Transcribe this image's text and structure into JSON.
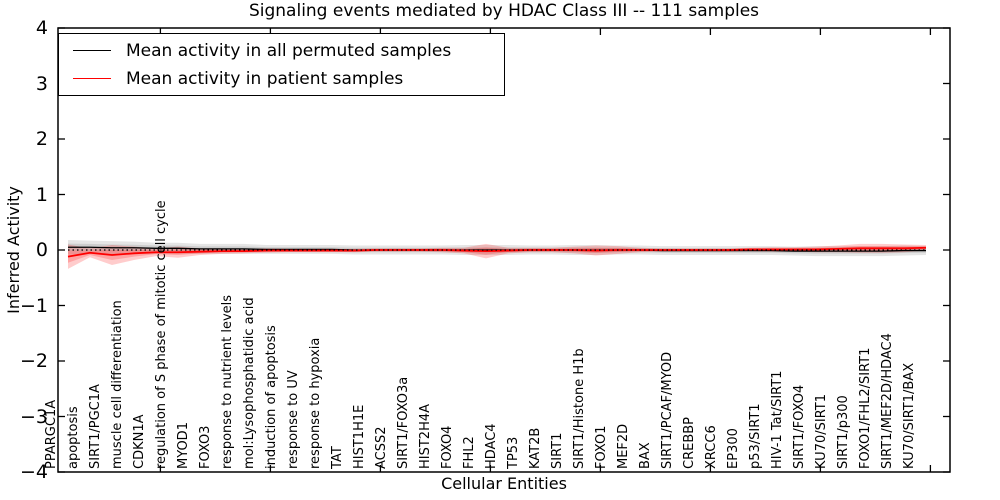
{
  "figure": {
    "title": "Signaling events mediated by HDAC Class III -- 111 samples",
    "xlabel": "Cellular Entities",
    "ylabel": "Inferred Activity"
  },
  "legend": {
    "position": "upper left",
    "items": [
      {
        "label": "Mean activity in all permuted samples",
        "color": "#000000"
      },
      {
        "label": "Mean activity in patient samples",
        "color": "#ff0000"
      }
    ]
  },
  "colors": {
    "axis": "#000000",
    "patient_line": "#ff0000",
    "permuted_line": "#000000",
    "patient_band": "rgba(255,0,0,0.20)",
    "permuted_band": "rgba(0,0,0,0.10)",
    "background": "#ffffff"
  },
  "chart_data": {
    "type": "line",
    "title": "Signaling events mediated by HDAC Class III -- 111 samples",
    "xlabel": "Cellular Entities",
    "ylabel": "Inferred Activity",
    "ylim": [
      -4,
      4
    ],
    "yticks": [
      4,
      3,
      2,
      1,
      0,
      -1,
      -2,
      -3,
      -4
    ],
    "grid": false,
    "legend_position": "upper left",
    "zero_reference_line": "dotted",
    "categories": [
      "PPARGC1A",
      "apoptosis",
      "SIRT1/PGC1A",
      "muscle cell differentiation",
      "CDKN1A",
      "regulation of S phase of mitotic cell cycle",
      "MYOD1",
      "FOXO3",
      "response to nutrient levels",
      "mol:Lysophosphatidic acid",
      "induction of apoptosis",
      "response to UV",
      "response to hypoxia",
      "TAT",
      "HIST1H1E",
      "ACSS2",
      "SIRT1/FOXO3a",
      "HIST2H4A",
      "FOXO4",
      "FHL2",
      "HDAC4",
      "TP53",
      "KAT2B",
      "SIRT1",
      "SIRT1/Histone H1b",
      "FOXO1",
      "MEF2D",
      "BAX",
      "SIRT1/PCAF/MYOD",
      "CREBBP",
      "XRCC6",
      "EP300",
      "p53/SIRT1",
      "HIV-1 Tat/SIRT1",
      "SIRT1/FOXO4",
      "KU70/SIRT1",
      "SIRT1/p300",
      "FOXO1/FHL2/SIRT1",
      "SIRT1/MEF2D/HDAC4",
      "KU70/SIRT1/BAX"
    ],
    "series": [
      {
        "name": "Mean activity in all permuted samples",
        "color": "#000000",
        "line_style": "solid",
        "values": [
          0.05,
          0.05,
          0.04,
          0.04,
          0.03,
          0.03,
          0.02,
          0.02,
          0.02,
          0.01,
          0.01,
          0.01,
          0.01,
          0.0,
          0.0,
          0.0,
          0.0,
          0.0,
          0.0,
          0.0,
          0.0,
          0.0,
          0.0,
          0.0,
          0.0,
          0.0,
          0.0,
          -0.01,
          -0.01,
          -0.01,
          -0.01,
          -0.01,
          -0.01,
          -0.02,
          -0.02,
          -0.02,
          -0.02,
          -0.02,
          -0.01,
          -0.01
        ],
        "band_halfwidth": [
          0.13,
          0.12,
          0.12,
          0.11,
          0.1,
          0.1,
          0.09,
          0.09,
          0.09,
          0.08,
          0.08,
          0.08,
          0.08,
          0.08,
          0.08,
          0.08,
          0.08,
          0.08,
          0.09,
          0.09,
          0.09,
          0.08,
          0.08,
          0.09,
          0.09,
          0.08,
          0.08,
          0.08,
          0.08,
          0.08,
          0.08,
          0.08,
          0.08,
          0.08,
          0.09,
          0.09,
          0.09,
          0.09,
          0.09,
          0.08
        ],
        "band_color": "rgba(0,0,0,0.10)"
      },
      {
        "name": "Mean activity in patient samples",
        "color": "#ff0000",
        "line_style": "solid",
        "values": [
          -0.12,
          -0.05,
          -0.09,
          -0.06,
          -0.04,
          -0.04,
          -0.03,
          -0.02,
          -0.02,
          -0.01,
          -0.01,
          -0.01,
          -0.01,
          -0.01,
          0.0,
          0.0,
          0.0,
          0.0,
          -0.01,
          -0.02,
          -0.01,
          0.0,
          0.0,
          0.0,
          -0.01,
          0.0,
          0.0,
          0.0,
          0.0,
          0.0,
          0.0,
          0.01,
          0.01,
          0.01,
          0.01,
          0.02,
          0.03,
          0.03,
          0.03,
          0.04
        ],
        "band_halfwidth": [
          0.22,
          0.08,
          0.18,
          0.12,
          0.07,
          0.1,
          0.06,
          0.05,
          0.04,
          0.04,
          0.03,
          0.03,
          0.03,
          0.03,
          0.03,
          0.03,
          0.03,
          0.04,
          0.05,
          0.13,
          0.05,
          0.04,
          0.04,
          0.06,
          0.09,
          0.07,
          0.04,
          0.03,
          0.03,
          0.03,
          0.03,
          0.03,
          0.04,
          0.04,
          0.05,
          0.06,
          0.08,
          0.08,
          0.07,
          0.05
        ],
        "band_color": "rgba(255,0,0,0.20)"
      }
    ]
  }
}
